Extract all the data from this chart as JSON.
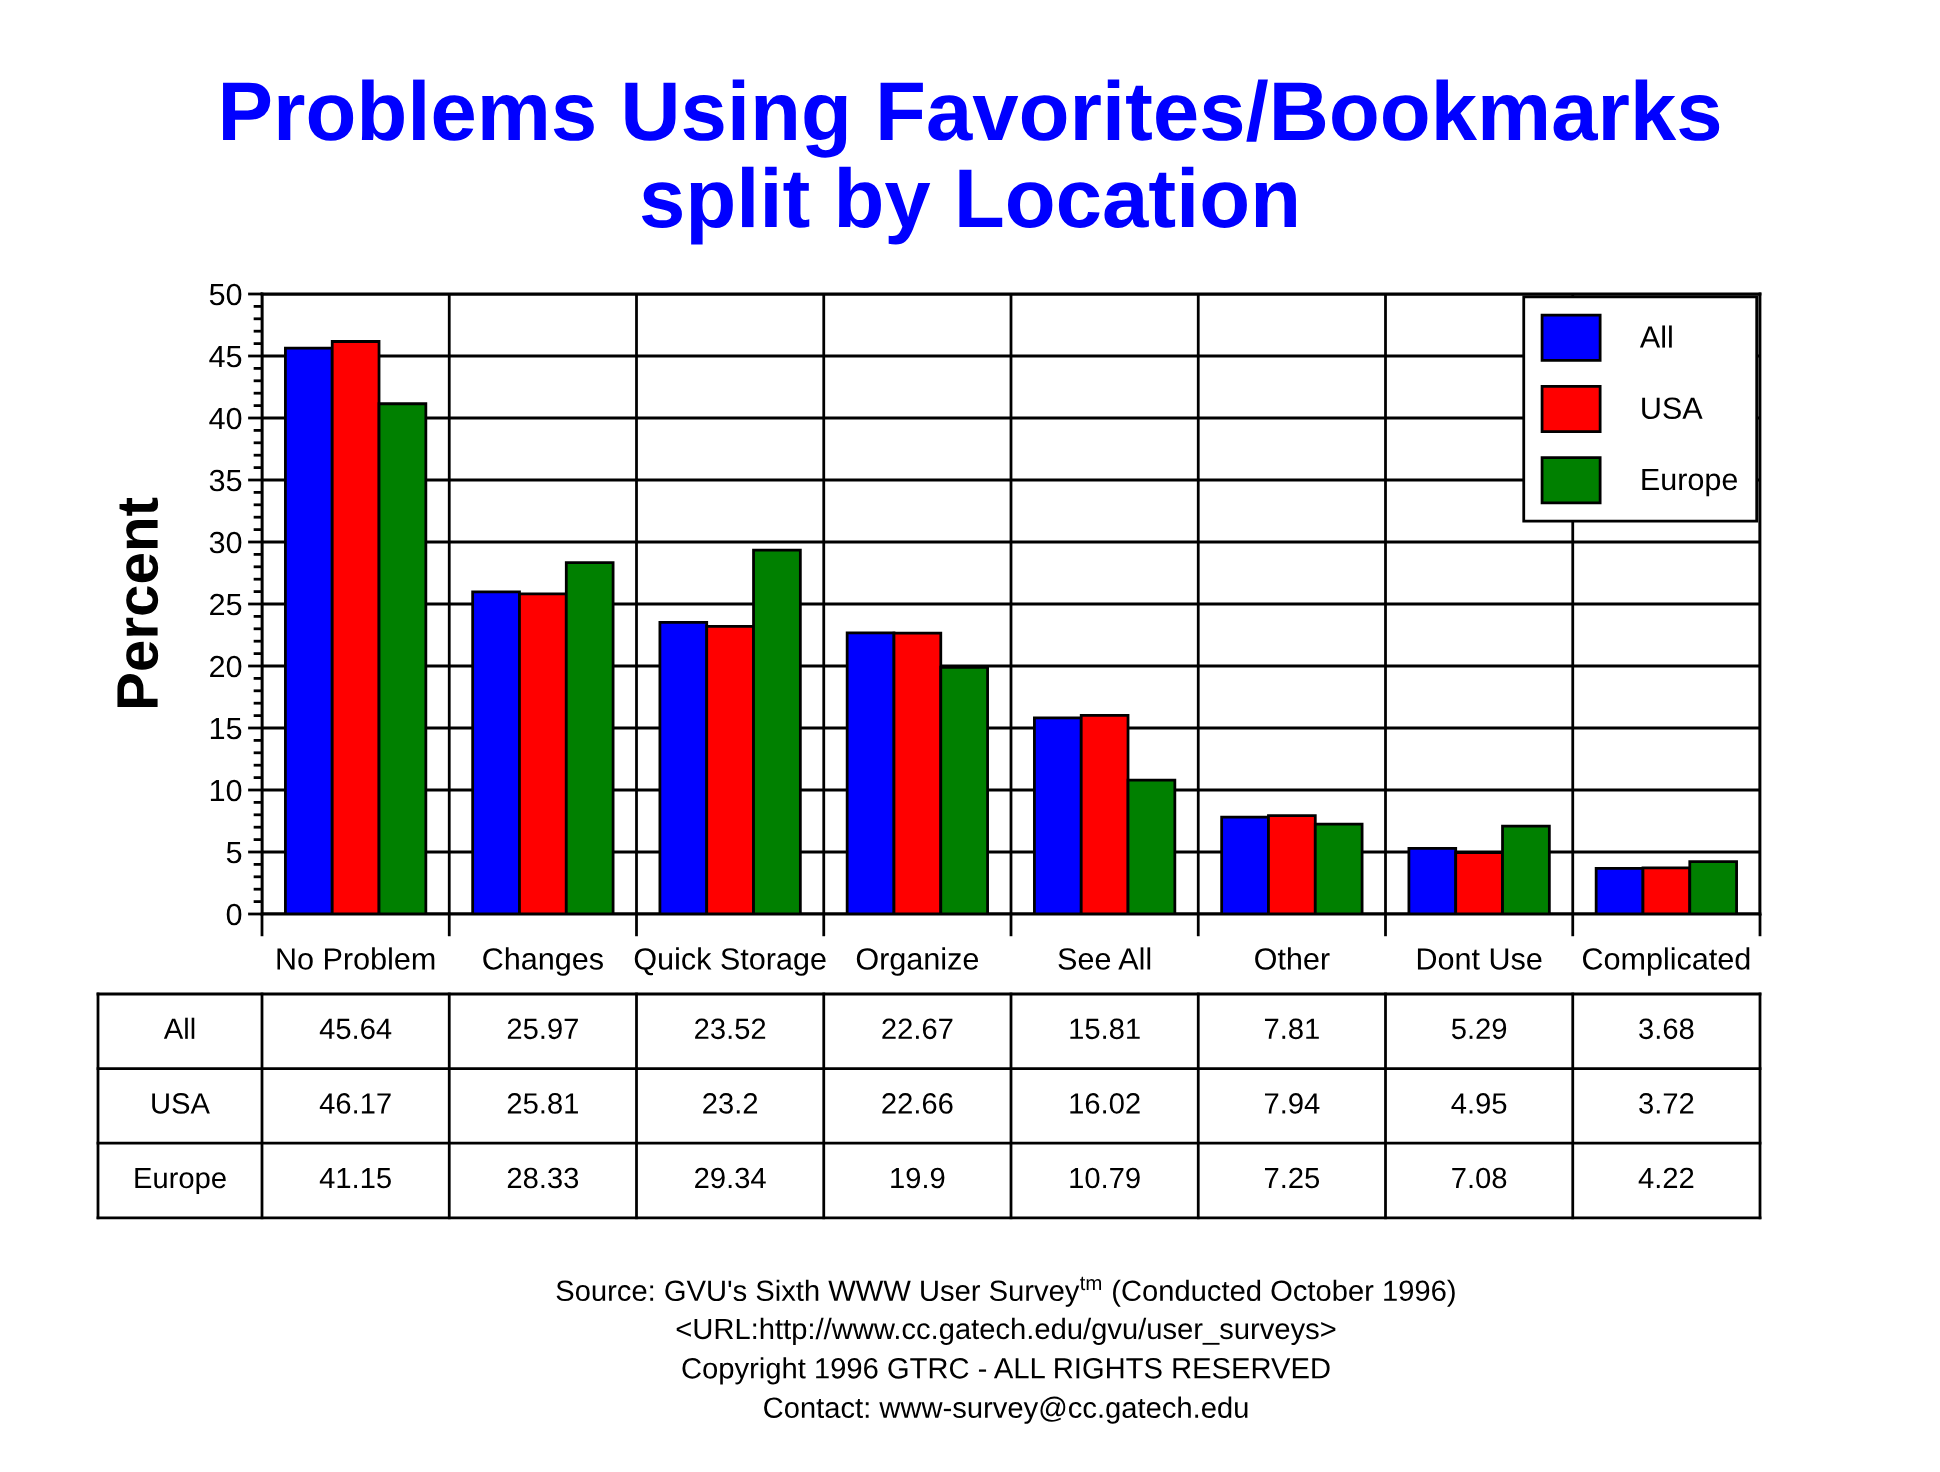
{
  "chart_data": {
    "type": "bar",
    "title": "Problems Using Favorites/Bookmarks\nsplit by Location",
    "ylabel": "Percent",
    "categories": [
      "No Problem",
      "Changes",
      "Quick Storage",
      "Organize",
      "See All",
      "Other",
      "Dont Use",
      "Complicated"
    ],
    "series": [
      {
        "name": "All",
        "color": "#0000ff",
        "values": [
          45.64,
          25.97,
          23.52,
          22.67,
          15.81,
          7.81,
          5.29,
          3.68
        ]
      },
      {
        "name": "USA",
        "color": "#ff0000",
        "values": [
          46.17,
          25.81,
          23.2,
          22.66,
          16.02,
          7.94,
          4.95,
          3.72
        ]
      },
      {
        "name": "Europe",
        "color": "#008000",
        "values": [
          41.15,
          28.33,
          29.34,
          19.9,
          10.79,
          7.25,
          7.08,
          4.22
        ]
      }
    ],
    "ylim": [
      0,
      50
    ],
    "yticks": [
      0,
      5,
      10,
      15,
      20,
      25,
      30,
      35,
      40,
      45,
      50
    ],
    "grid": true,
    "legend": "top right",
    "data_labels": true,
    "annotations": [
      "Source: GVU's Sixth WWW User Survey$^{tm}$ (Conducted October 1996)",
      "<URL:http://www.cc.gatech.edu/gvu/user_surveys>",
      "Copyright 1996 GTRC - ALL RIGHTS RESERVED",
      "Contact: www-survey@cc.gatech.edu"
    ]
  }
}
